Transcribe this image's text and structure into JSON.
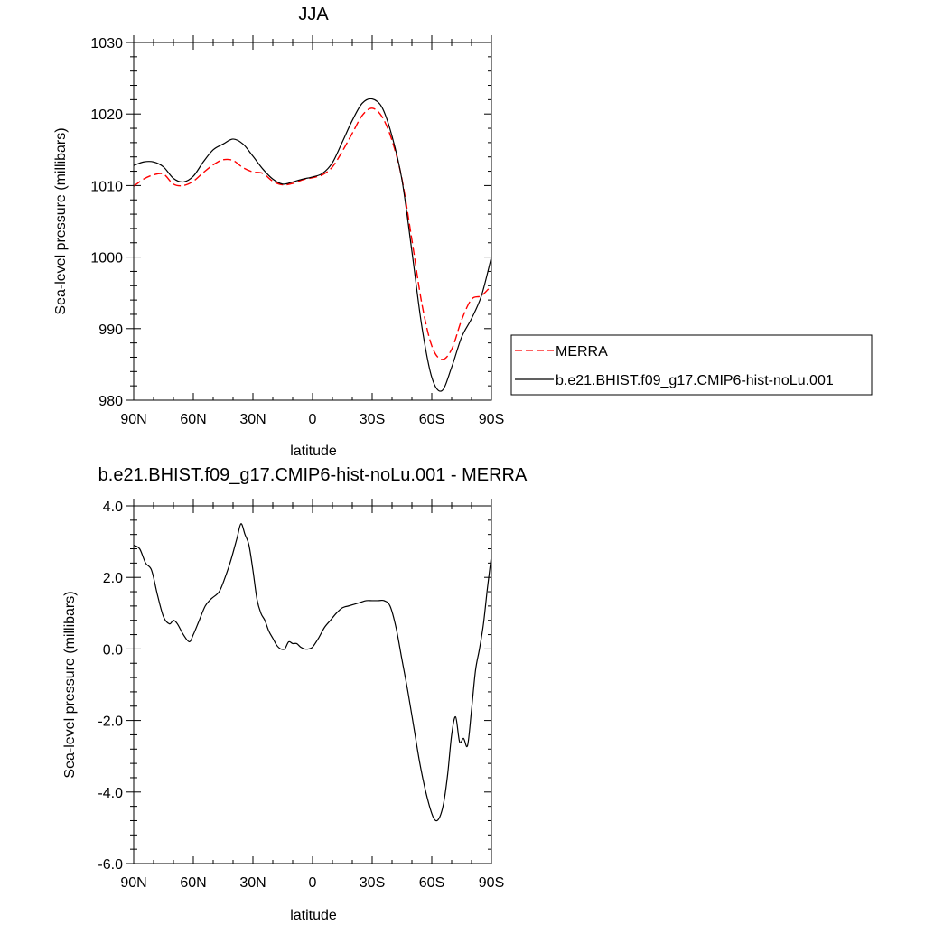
{
  "chart_data": [
    {
      "type": "line",
      "title": "JJA",
      "xlabel": "latitude",
      "ylabel": "Sea-level pressure (millibars)",
      "xlim": [
        90,
        -90
      ],
      "ylim": [
        980,
        1030
      ],
      "x_ticks": [
        {
          "value": 90,
          "label": "90N"
        },
        {
          "value": 60,
          "label": "60N"
        },
        {
          "value": 30,
          "label": "30N"
        },
        {
          "value": 0,
          "label": "0"
        },
        {
          "value": -30,
          "label": "30S"
        },
        {
          "value": -60,
          "label": "60S"
        },
        {
          "value": -90,
          "label": "90S"
        }
      ],
      "y_ticks": [
        {
          "value": 1030,
          "label": "1030"
        },
        {
          "value": 1020,
          "label": "1020"
        },
        {
          "value": 1010,
          "label": "1010"
        },
        {
          "value": 1000,
          "label": "1000"
        },
        {
          "value": 990,
          "label": "990"
        },
        {
          "value": 980,
          "label": "980"
        }
      ],
      "legend_position": "right",
      "series": [
        {
          "name": "MERRA",
          "color": "#ff0000",
          "dash": "dashed",
          "x": [
            90,
            85,
            80,
            75,
            70,
            65,
            60,
            55,
            50,
            45,
            40,
            35,
            30,
            25,
            20,
            15,
            10,
            5,
            0,
            -5,
            -10,
            -15,
            -20,
            -25,
            -30,
            -35,
            -40,
            -45,
            -50,
            -55,
            -60,
            -65,
            -70,
            -75,
            -80,
            -85,
            -90
          ],
          "y": [
            1009.9,
            1010.9,
            1011.5,
            1011.6,
            1010.2,
            1010.0,
            1010.6,
            1011.8,
            1012.9,
            1013.6,
            1013.5,
            1012.5,
            1011.9,
            1011.7,
            1010.6,
            1010.1,
            1010.3,
            1010.8,
            1011.1,
            1011.5,
            1012.6,
            1014.8,
            1017.3,
            1019.8,
            1020.8,
            1019.6,
            1016.3,
            1010.9,
            1002.4,
            993.5,
            987.6,
            985.7,
            987.1,
            991.2,
            994.1,
            994.6,
            996.0
          ]
        },
        {
          "name": "b.e21.BHIST.f09_g17.CMIP6-hist-noLu.001",
          "color": "#000000",
          "dash": "solid",
          "x": [
            90,
            85,
            80,
            75,
            70,
            65,
            60,
            55,
            50,
            45,
            40,
            35,
            30,
            25,
            20,
            15,
            10,
            5,
            0,
            -5,
            -10,
            -15,
            -20,
            -25,
            -30,
            -35,
            -40,
            -45,
            -50,
            -55,
            -60,
            -65,
            -70,
            -75,
            -80,
            -85,
            -90
          ],
          "y": [
            1012.8,
            1013.3,
            1013.3,
            1012.6,
            1011.0,
            1010.5,
            1011.3,
            1013.3,
            1015.0,
            1015.8,
            1016.5,
            1015.8,
            1014.1,
            1012.3,
            1010.9,
            1010.2,
            1010.5,
            1010.9,
            1011.2,
            1011.7,
            1013.2,
            1016.1,
            1019.1,
            1021.5,
            1022.1,
            1020.9,
            1016.9,
            1010.8,
            1000.8,
            990.3,
            983.2,
            981.3,
            984.6,
            988.8,
            991.4,
            994.6,
            1000.0
          ]
        }
      ]
    },
    {
      "type": "line",
      "title": "b.e21.BHIST.f09_g17.CMIP6-hist-noLu.001 - MERRA",
      "xlabel": "latitude",
      "ylabel": "Sea-level pressure (millibars)",
      "xlim": [
        90,
        -90
      ],
      "ylim": [
        -6.0,
        4.0
      ],
      "x_ticks": [
        {
          "value": 90,
          "label": "90N"
        },
        {
          "value": 60,
          "label": "60N"
        },
        {
          "value": 30,
          "label": "30N"
        },
        {
          "value": 0,
          "label": "0"
        },
        {
          "value": -30,
          "label": "30S"
        },
        {
          "value": -60,
          "label": "60S"
        },
        {
          "value": -90,
          "label": "90S"
        }
      ],
      "y_ticks": [
        {
          "value": 4.0,
          "label": "4.0"
        },
        {
          "value": 2.0,
          "label": "2.0"
        },
        {
          "value": 0.0,
          "label": "0.0"
        },
        {
          "value": -2.0,
          "label": "-2.0"
        },
        {
          "value": -4.0,
          "label": "-4.0"
        },
        {
          "value": -6.0,
          "label": "-6.0"
        }
      ],
      "series": [
        {
          "color": "#000000",
          "dash": "solid",
          "x": [
            90,
            87,
            84,
            81,
            78,
            75,
            72,
            70,
            68,
            65,
            62,
            60,
            57,
            54,
            51,
            47,
            44,
            41,
            38,
            36,
            34,
            32,
            30,
            28,
            26,
            24,
            22,
            20,
            18,
            16,
            14,
            12,
            10,
            8,
            6,
            4,
            2,
            0,
            -3,
            -6,
            -9,
            -12,
            -15,
            -18,
            -21,
            -24,
            -27,
            -30,
            -33,
            -36,
            -39,
            -42,
            -45,
            -48,
            -51,
            -54,
            -57,
            -60,
            -62,
            -64,
            -66,
            -68,
            -70,
            -72,
            -74,
            -76,
            -78,
            -80,
            -82,
            -84,
            -86,
            -88,
            -90
          ],
          "y": [
            2.9,
            2.8,
            2.4,
            2.2,
            1.5,
            0.9,
            0.7,
            0.8,
            0.7,
            0.4,
            0.2,
            0.4,
            0.8,
            1.2,
            1.4,
            1.6,
            2.0,
            2.5,
            3.1,
            3.5,
            3.2,
            2.9,
            2.2,
            1.4,
            1.0,
            0.8,
            0.5,
            0.3,
            0.1,
            0.0,
            0.0,
            0.2,
            0.15,
            0.15,
            0.05,
            0.0,
            0.0,
            0.05,
            0.3,
            0.6,
            0.8,
            1.0,
            1.15,
            1.2,
            1.25,
            1.3,
            1.35,
            1.35,
            1.35,
            1.35,
            1.2,
            0.6,
            -0.3,
            -1.2,
            -2.2,
            -3.2,
            -4.0,
            -4.6,
            -4.8,
            -4.7,
            -4.3,
            -3.5,
            -2.4,
            -1.9,
            -2.6,
            -2.5,
            -2.7,
            -1.7,
            -0.6,
            0.0,
            0.7,
            1.7,
            2.6
          ]
        }
      ]
    }
  ]
}
